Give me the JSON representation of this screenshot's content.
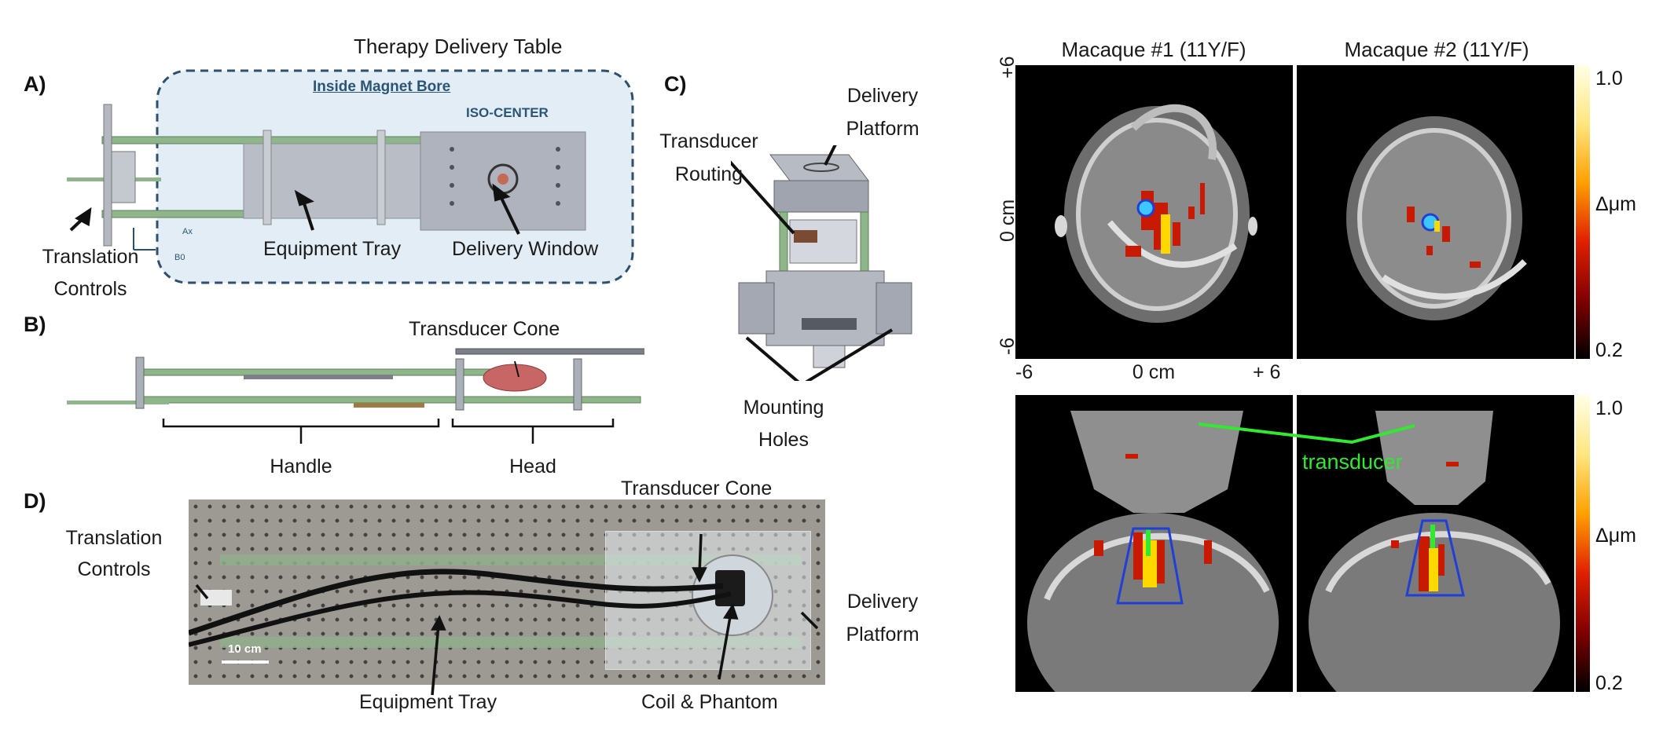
{
  "panelA": {
    "letter": "A)",
    "title": "Therapy Delivery Table",
    "bore_label": "Inside Magnet Bore",
    "iso_label": "ISO-CENTER",
    "axis_ax": "Ax",
    "axis_b0": "B0",
    "labels": [
      "Equipment Tray",
      "Delivery Window",
      "Translation",
      "Controls"
    ]
  },
  "panelB": {
    "letter": "B)",
    "labels": [
      "Transducer Cone",
      "Handle",
      "Head"
    ]
  },
  "panelC": {
    "letter": "C)",
    "labels": [
      "Delivery",
      "Platform",
      "Transducer",
      "Routing",
      "Mounting",
      "Holes"
    ]
  },
  "panelD": {
    "letter": "D)",
    "scale": "10 cm",
    "labels": [
      "Transducer Cone",
      "Translation",
      "Controls",
      "Delivery",
      "Platform",
      "Equipment Tray",
      "Coil & Phantom"
    ]
  },
  "mri": {
    "col_titles": [
      "Macaque #1 (11Y/F)",
      "Macaque #2 (11Y/F)"
    ],
    "y_ticks": [
      "+6",
      "0 cm",
      "-6"
    ],
    "x_ticks": [
      "-6",
      "0 cm",
      "+ 6"
    ],
    "cbar_top": "1.0",
    "cbar_bottom": "0.2",
    "cbar_unit": "Δμm",
    "transducer_label": "transducer",
    "colors": {
      "transducer_green": "#33e833",
      "outline_blue": "#1f3fd6"
    }
  }
}
